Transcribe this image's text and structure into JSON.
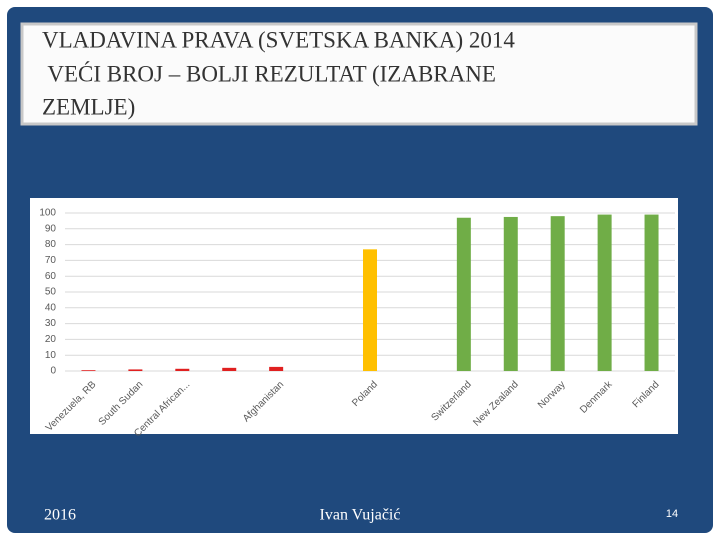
{
  "slide": {
    "title_lines": [
      "VLADAVINA PRAVA (SVETSKA BANKA) 2014",
      " VEĆI BROJ – BOLJI REZULTAT (IZABRANE",
      "ZEMLJE)"
    ],
    "footer_left": "2016",
    "footer_center": "Ivan Vujačić",
    "page_number": 14
  },
  "chart_data": {
    "type": "bar",
    "categories": [
      "Venezuela, RB",
      "South Sudan",
      "Central African...",
      null,
      "Afghanistan",
      null,
      "Poland",
      null,
      "Switzerland",
      "New Zealand",
      "Norway",
      "Denmark",
      "Finland"
    ],
    "values": [
      0.5,
      1,
      1.4,
      2,
      2.6,
      null,
      77,
      null,
      97,
      97.5,
      98,
      99,
      99
    ],
    "colors": [
      "#e02020",
      "#e02020",
      "#e02020",
      "#e02020",
      "#e02020",
      null,
      "#ffc000",
      null,
      "#70ad47",
      "#70ad47",
      "#70ad47",
      "#70ad47",
      "#70ad47"
    ],
    "ylim": [
      0,
      100
    ],
    "yticks": [
      0,
      10,
      20,
      30,
      40,
      50,
      60,
      70,
      80,
      90,
      100
    ],
    "grid": true
  }
}
